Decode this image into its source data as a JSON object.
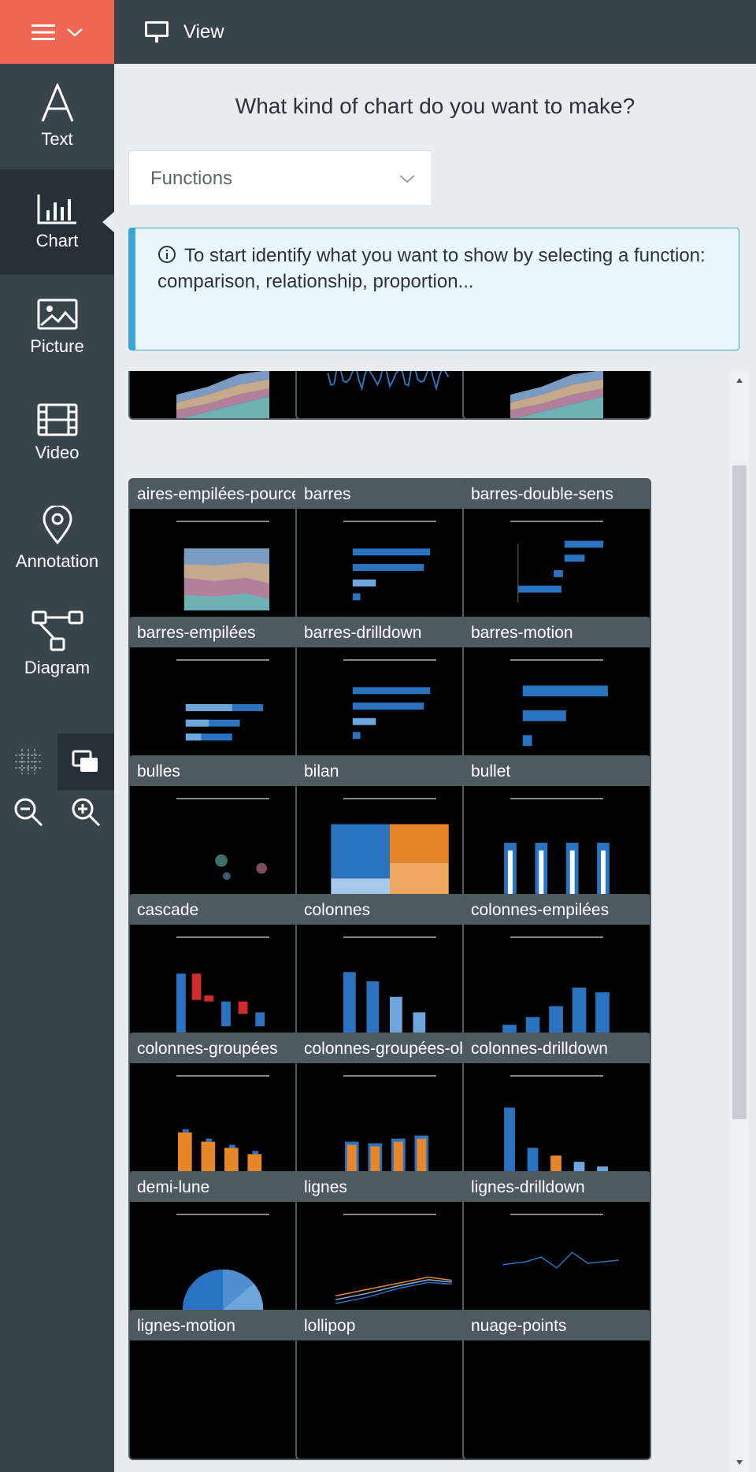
{
  "topbar": {
    "menu_icon": "hamburger-icon",
    "view_label": "View"
  },
  "sidebar": {
    "items": [
      {
        "label": "Text",
        "icon": "text-icon"
      },
      {
        "label": "Chart",
        "icon": "chart-icon"
      },
      {
        "label": "Picture",
        "icon": "picture-icon"
      },
      {
        "label": "Video",
        "icon": "video-icon"
      },
      {
        "label": "Annotation",
        "icon": "annotation-icon"
      },
      {
        "label": "Diagram",
        "icon": "diagram-icon"
      }
    ],
    "active": "Chart"
  },
  "main": {
    "question": "What kind of chart do you want to make?",
    "select": {
      "value": "Functions"
    },
    "info": "To start identify what you want to show by selecting a function: comparison, relationship, proportion..."
  },
  "gallery": {
    "cards": [
      {
        "title": "",
        "thumb": "area"
      },
      {
        "title": "",
        "thumb": "stock"
      },
      {
        "title": "",
        "thumb": "area"
      },
      {
        "title": "aires-empilées-pource...",
        "thumb": "area100"
      },
      {
        "title": "barres",
        "thumb": "hbar"
      },
      {
        "title": "barres-double-sens",
        "thumb": "hbar2"
      },
      {
        "title": "barres-empilées",
        "thumb": "hbarstack"
      },
      {
        "title": "barres-drilldown",
        "thumb": "hbar"
      },
      {
        "title": "barres-motion",
        "thumb": "hbar3"
      },
      {
        "title": "bulles",
        "thumb": "bubble"
      },
      {
        "title": "bilan",
        "thumb": "treemap"
      },
      {
        "title": "bullet",
        "thumb": "bullet"
      },
      {
        "title": "cascade",
        "thumb": "waterfall"
      },
      {
        "title": "colonnes",
        "thumb": "col"
      },
      {
        "title": "colonnes-empilées",
        "thumb": "colstack"
      },
      {
        "title": "colonnes-groupées",
        "thumb": "colgroup"
      },
      {
        "title": "colonnes-groupées-ob...",
        "thumb": "colgroup2"
      },
      {
        "title": "colonnes-drilldown",
        "thumb": "coldrill"
      },
      {
        "title": "demi-lune",
        "thumb": "halfpie"
      },
      {
        "title": "lignes",
        "thumb": "lines"
      },
      {
        "title": "lignes-drilldown",
        "thumb": "lines2"
      },
      {
        "title": "lignes-motion",
        "thumb": "blank"
      },
      {
        "title": "lollipop",
        "thumb": "blank"
      },
      {
        "title": "nuage-points",
        "thumb": "blank"
      }
    ]
  },
  "colors": {
    "accent": "#ef6652",
    "sidebar": "#37444b",
    "info_border": "#3aa6d8",
    "chart_blue": "#2a73c0",
    "chart_orange": "#e8862a"
  }
}
